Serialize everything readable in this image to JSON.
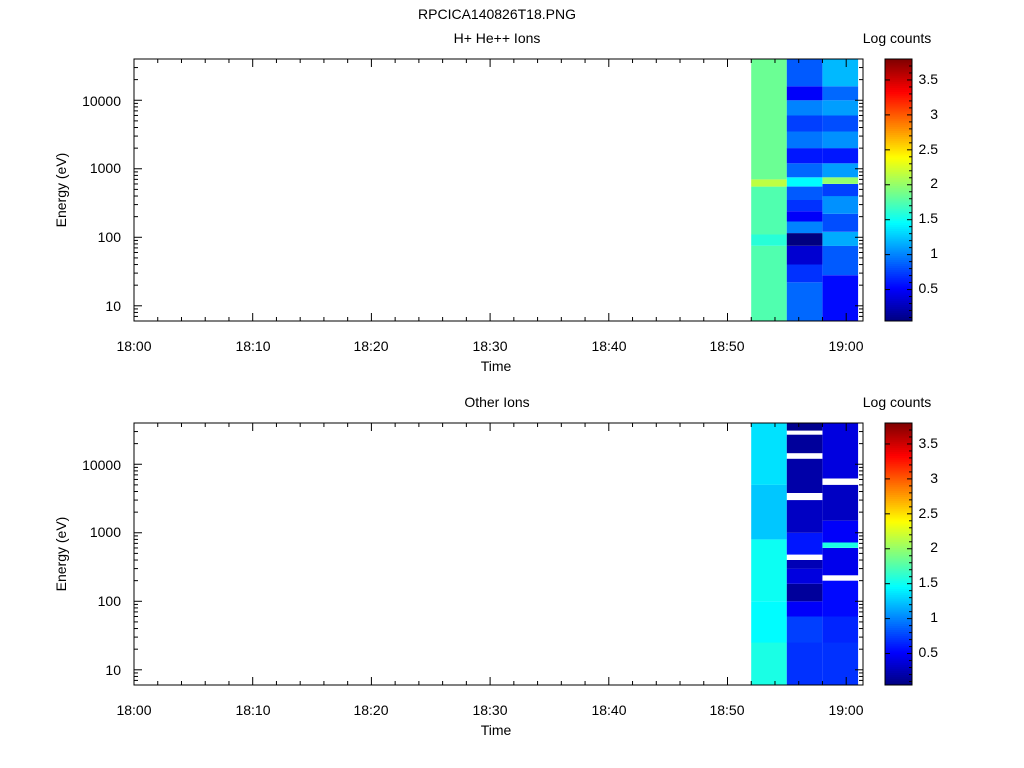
{
  "figure_title": "RPCICA140826T18.PNG",
  "colorbar_label": "Log counts",
  "colorbar_ticks": [
    "0.5",
    "1",
    "1.5",
    "2",
    "2.5",
    "3",
    "3.5"
  ],
  "colors": {
    "colormap": "jet",
    "background": "#ffffff",
    "axis": "#000000"
  },
  "chart_data": [
    {
      "type": "heatmap",
      "title": "H+ He++ Ions",
      "xlabel": "Time",
      "ylabel": "Energy (eV)",
      "x_ticks": [
        "18:00",
        "18:10",
        "18:20",
        "18:30",
        "18:40",
        "18:50",
        "19:00"
      ],
      "y_ticks": [
        "10",
        "100",
        "1000",
        "10000"
      ],
      "y_scale": "log",
      "ylim": [
        6,
        40000
      ],
      "xlim_minutes_after_18_00": [
        0,
        61.5
      ],
      "colorbar": {
        "label": "Log counts",
        "range": [
          0.05,
          3.8
        ]
      },
      "columns": [
        {
          "start": "18:52",
          "end": "18:55",
          "bins": [
            {
              "e_lo": 6,
              "e_hi": 75,
              "value": 1.75
            },
            {
              "e_lo": 75,
              "e_hi": 110,
              "value": 1.6
            },
            {
              "e_lo": 110,
              "e_hi": 550,
              "value": 1.75
            },
            {
              "e_lo": 550,
              "e_hi": 700,
              "value": 2.15
            },
            {
              "e_lo": 700,
              "e_hi": 40000,
              "value": 1.85
            }
          ]
        },
        {
          "start": "18:55",
          "end": "18:58",
          "bins": [
            {
              "e_lo": 6,
              "e_hi": 22,
              "value": 0.9
            },
            {
              "e_lo": 22,
              "e_hi": 40,
              "value": 0.7
            },
            {
              "e_lo": 40,
              "e_hi": 75,
              "value": 0.35
            },
            {
              "e_lo": 75,
              "e_hi": 115,
              "value": 0.05
            },
            {
              "e_lo": 115,
              "e_hi": 170,
              "value": 1.0
            },
            {
              "e_lo": 170,
              "e_hi": 240,
              "value": 0.5
            },
            {
              "e_lo": 240,
              "e_hi": 350,
              "value": 0.7
            },
            {
              "e_lo": 350,
              "e_hi": 550,
              "value": 0.85
            },
            {
              "e_lo": 550,
              "e_hi": 750,
              "value": 1.45
            },
            {
              "e_lo": 750,
              "e_hi": 1200,
              "value": 0.9
            },
            {
              "e_lo": 1200,
              "e_hi": 2000,
              "value": 0.6
            },
            {
              "e_lo": 2000,
              "e_hi": 3500,
              "value": 0.95
            },
            {
              "e_lo": 3500,
              "e_hi": 6000,
              "value": 0.75
            },
            {
              "e_lo": 6000,
              "e_hi": 10000,
              "value": 1.0
            },
            {
              "e_lo": 10000,
              "e_hi": 16000,
              "value": 0.5
            },
            {
              "e_lo": 16000,
              "e_hi": 40000,
              "value": 0.85
            }
          ]
        },
        {
          "start": "18:58",
          "end": "19:01",
          "bins": [
            {
              "e_lo": 6,
              "e_hi": 28,
              "value": 0.55
            },
            {
              "e_lo": 28,
              "e_hi": 75,
              "value": 0.85
            },
            {
              "e_lo": 75,
              "e_hi": 120,
              "value": 1.15
            },
            {
              "e_lo": 120,
              "e_hi": 220,
              "value": 0.8
            },
            {
              "e_lo": 220,
              "e_hi": 400,
              "value": 1.05
            },
            {
              "e_lo": 400,
              "e_hi": 600,
              "value": 0.75
            },
            {
              "e_lo": 600,
              "e_hi": 750,
              "value": 2.0
            },
            {
              "e_lo": 750,
              "e_hi": 1200,
              "value": 1.1
            },
            {
              "e_lo": 1200,
              "e_hi": 2000,
              "value": 0.6
            },
            {
              "e_lo": 2000,
              "e_hi": 3500,
              "value": 1.05
            },
            {
              "e_lo": 3500,
              "e_hi": 6000,
              "value": 0.8
            },
            {
              "e_lo": 6000,
              "e_hi": 10000,
              "value": 1.1
            },
            {
              "e_lo": 10000,
              "e_hi": 16000,
              "value": 0.9
            },
            {
              "e_lo": 16000,
              "e_hi": 40000,
              "value": 1.2
            }
          ]
        }
      ]
    },
    {
      "type": "heatmap",
      "title": "Other Ions",
      "xlabel": "Time",
      "ylabel": "Energy (eV)",
      "x_ticks": [
        "18:00",
        "18:10",
        "18:20",
        "18:30",
        "18:40",
        "18:50",
        "19:00"
      ],
      "y_ticks": [
        "10",
        "100",
        "1000",
        "10000"
      ],
      "y_scale": "log",
      "ylim": [
        6,
        40000
      ],
      "xlim_minutes_after_18_00": [
        0,
        61.5
      ],
      "colorbar": {
        "label": "Log counts",
        "range": [
          0.05,
          3.8
        ]
      },
      "columns": [
        {
          "start": "18:52",
          "end": "18:55",
          "bins": [
            {
              "e_lo": 6,
              "e_hi": 25,
              "value": 1.55
            },
            {
              "e_lo": 25,
              "e_hi": 100,
              "value": 1.45
            },
            {
              "e_lo": 100,
              "e_hi": 800,
              "value": 1.5
            },
            {
              "e_lo": 800,
              "e_hi": 5000,
              "value": 1.25
            },
            {
              "e_lo": 5000,
              "e_hi": 40000,
              "value": 1.35
            }
          ]
        },
        {
          "start": "18:55",
          "end": "18:58",
          "bins": [
            {
              "e_lo": 6,
              "e_hi": 25,
              "value": 0.7
            },
            {
              "e_lo": 25,
              "e_hi": 60,
              "value": 0.75
            },
            {
              "e_lo": 60,
              "e_hi": 100,
              "value": 0.5
            },
            {
              "e_lo": 100,
              "e_hi": 180,
              "value": 0.15
            },
            {
              "e_lo": 180,
              "e_hi": 300,
              "value": 0.4
            },
            {
              "e_lo": 300,
              "e_hi": 400,
              "value": 0.25
            },
            {
              "e_lo": 400,
              "e_hi": 480,
              "value": null
            },
            {
              "e_lo": 480,
              "e_hi": 1000,
              "value": 0.6
            },
            {
              "e_lo": 1000,
              "e_hi": 3000,
              "value": 0.3
            },
            {
              "e_lo": 3000,
              "e_hi": 3800,
              "value": null
            },
            {
              "e_lo": 3800,
              "e_hi": 12000,
              "value": 0.2
            },
            {
              "e_lo": 12000,
              "e_hi": 14500,
              "value": null
            },
            {
              "e_lo": 14500,
              "e_hi": 27000,
              "value": 0.15
            },
            {
              "e_lo": 27000,
              "e_hi": 31000,
              "value": null
            },
            {
              "e_lo": 31000,
              "e_hi": 40000,
              "value": 0.1
            }
          ]
        },
        {
          "start": "18:58",
          "end": "19:01",
          "bins": [
            {
              "e_lo": 6,
              "e_hi": 25,
              "value": 0.7
            },
            {
              "e_lo": 25,
              "e_hi": 60,
              "value": 0.65
            },
            {
              "e_lo": 60,
              "e_hi": 200,
              "value": 0.55
            },
            {
              "e_lo": 200,
              "e_hi": 240,
              "value": null
            },
            {
              "e_lo": 240,
              "e_hi": 600,
              "value": 0.45
            },
            {
              "e_lo": 600,
              "e_hi": 720,
              "value": 1.55
            },
            {
              "e_lo": 720,
              "e_hi": 1500,
              "value": 0.5
            },
            {
              "e_lo": 1500,
              "e_hi": 5000,
              "value": 0.3
            },
            {
              "e_lo": 5000,
              "e_hi": 6200,
              "value": null
            },
            {
              "e_lo": 6200,
              "e_hi": 40000,
              "value": 0.4
            }
          ]
        }
      ]
    }
  ]
}
